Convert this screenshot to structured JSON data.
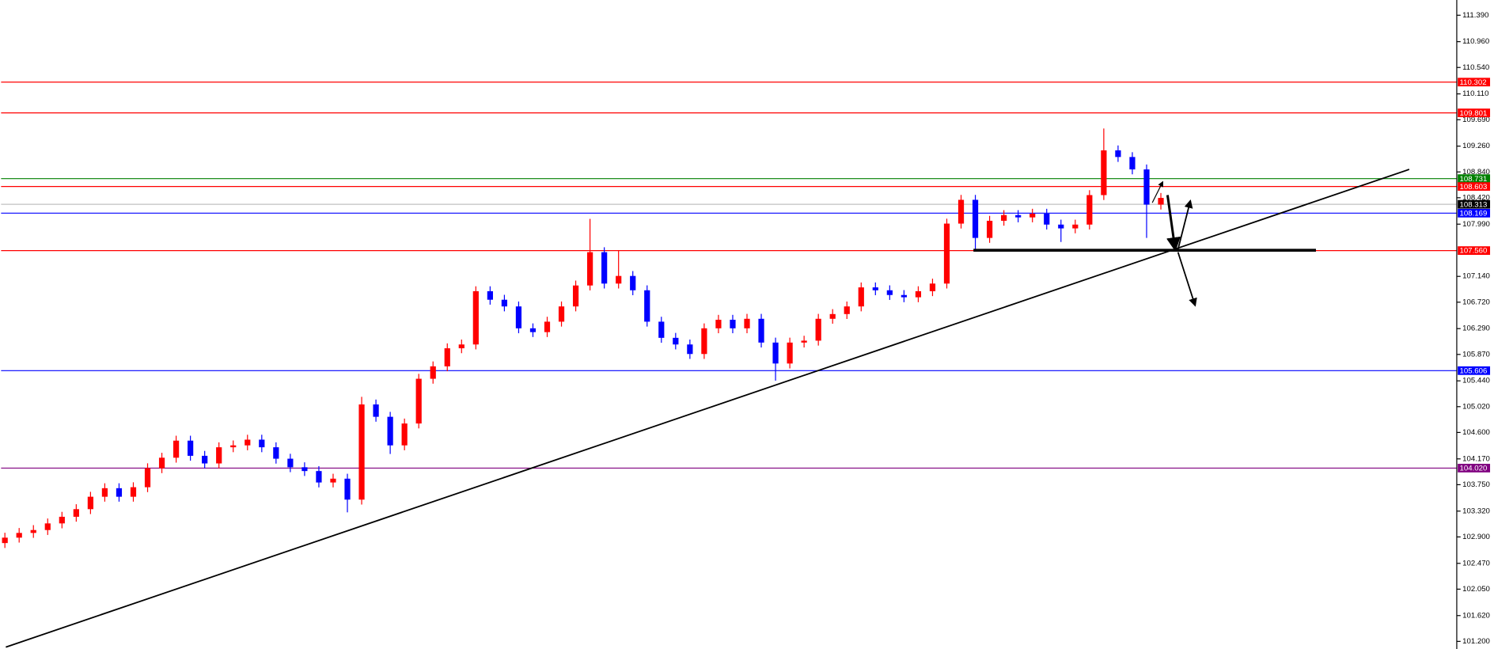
{
  "chart_data": {
    "type": "candlestick",
    "up_color": "#ff0000",
    "down_color": "#0000ff",
    "ylim": [
      101.076,
      111.638
    ],
    "yticks": [
      {
        "value": 111.39,
        "label": "111.390"
      },
      {
        "value": 110.96,
        "label": "110.960"
      },
      {
        "value": 110.54,
        "label": "110.540"
      },
      {
        "value": 110.11,
        "label": "110.110"
      },
      {
        "value": 109.69,
        "label": "109.690"
      },
      {
        "value": 109.26,
        "label": "109.260"
      },
      {
        "value": 108.84,
        "label": "108.840"
      },
      {
        "value": 108.42,
        "label": "108.420"
      },
      {
        "value": 107.99,
        "label": "107.990"
      },
      {
        "value": 107.14,
        "label": "107.140"
      },
      {
        "value": 106.72,
        "label": "106.720"
      },
      {
        "value": 106.29,
        "label": "106.290"
      },
      {
        "value": 105.87,
        "label": "105.870"
      },
      {
        "value": 105.44,
        "label": "105.440"
      },
      {
        "value": 105.02,
        "label": "105.020"
      },
      {
        "value": 104.6,
        "label": "104.600"
      },
      {
        "value": 104.17,
        "label": "104.170"
      },
      {
        "value": 103.75,
        "label": "103.750"
      },
      {
        "value": 103.32,
        "label": "103.320"
      },
      {
        "value": 102.9,
        "label": "102.900"
      },
      {
        "value": 102.47,
        "label": "102.470"
      },
      {
        "value": 102.05,
        "label": "102.050"
      },
      {
        "value": 101.62,
        "label": "101.620"
      },
      {
        "value": 101.2,
        "label": "101.200"
      }
    ],
    "levels": [
      {
        "value": 110.302,
        "color": "#ff0000"
      },
      {
        "value": 109.801,
        "color": "#ff0000"
      },
      {
        "value": 108.731,
        "color": "#008000"
      },
      {
        "value": 108.603,
        "color": "#ff0000"
      },
      {
        "value": 108.313,
        "color": "#000000"
      },
      {
        "value": 108.169,
        "color": "#0000ff"
      },
      {
        "value": 107.56,
        "label": "107.560",
        "color": "#ff0000"
      },
      {
        "value": 105.606,
        "color": "#0000ff"
      },
      {
        "value": 104.02,
        "label": "104.020",
        "color": "#800080"
      }
    ],
    "open": [
      102.8,
      102.888,
      102.965,
      103.012,
      103.12,
      103.228,
      103.352,
      103.554,
      103.693,
      103.554,
      103.709,
      104.018,
      104.189,
      104.467,
      104.22,
      104.096,
      104.359,
      104.39,
      104.483,
      104.359,
      104.173,
      104.034,
      103.972,
      103.786,
      103.848,
      103.507,
      105.056,
      104.855,
      104.39,
      104.746,
      105.474,
      105.676,
      105.97,
      106.032,
      106.899,
      106.76,
      106.651,
      106.295,
      106.233,
      106.403,
      106.651,
      106.992,
      107.534,
      107.023,
      107.147,
      106.914,
      106.403,
      106.14,
      106.032,
      105.877,
      106.295,
      106.434,
      106.295,
      106.45,
      106.063,
      105.722,
      106.063,
      106.094,
      106.45,
      106.527,
      106.651,
      106.961,
      106.914,
      106.837,
      106.8,
      106.899,
      107.023,
      107.999,
      108.386,
      107.766,
      108.045,
      108.138,
      108.1,
      108.16,
      107.983,
      107.921,
      107.983,
      108.463,
      109.191,
      109.083,
      108.881,
      108.308
    ],
    "close": [
      102.888,
      102.965,
      103.012,
      103.12,
      103.228,
      103.352,
      103.554,
      103.693,
      103.554,
      103.709,
      104.018,
      104.189,
      104.467,
      104.22,
      104.096,
      104.359,
      104.39,
      104.483,
      104.359,
      104.173,
      104.034,
      103.972,
      103.786,
      103.848,
      103.507,
      105.056,
      104.855,
      104.39,
      104.746,
      105.474,
      105.676,
      105.97,
      106.032,
      106.899,
      106.76,
      106.651,
      106.295,
      106.233,
      106.403,
      106.651,
      106.992,
      107.534,
      107.023,
      107.147,
      106.914,
      106.403,
      106.14,
      106.032,
      105.877,
      106.295,
      106.434,
      106.295,
      106.45,
      106.063,
      105.722,
      106.063,
      106.094,
      106.45,
      106.527,
      106.651,
      106.961,
      106.914,
      106.837,
      106.8,
      106.899,
      107.023,
      107.999,
      108.386,
      107.766,
      108.045,
      108.138,
      108.1,
      108.16,
      107.983,
      107.921,
      107.983,
      108.463,
      109.191,
      109.083,
      108.881,
      108.308,
      108.417
    ],
    "high": [
      102.968,
      103.045,
      103.092,
      103.2,
      103.308,
      103.432,
      103.634,
      103.773,
      103.773,
      103.789,
      104.098,
      104.269,
      104.547,
      104.547,
      104.3,
      104.439,
      104.47,
      104.563,
      104.563,
      104.439,
      104.253,
      104.114,
      104.052,
      103.928,
      103.928,
      105.18,
      105.136,
      104.935,
      104.826,
      105.554,
      105.756,
      106.05,
      106.112,
      106.979,
      106.979,
      106.84,
      106.731,
      106.375,
      106.483,
      106.731,
      107.072,
      108.076,
      107.614,
      107.56,
      107.227,
      106.994,
      106.483,
      106.22,
      106.112,
      106.375,
      106.514,
      106.514,
      106.53,
      106.53,
      106.143,
      106.143,
      106.174,
      106.53,
      106.607,
      106.731,
      107.041,
      107.041,
      106.994,
      106.917,
      106.979,
      107.103,
      108.079,
      108.466,
      108.466,
      108.125,
      108.218,
      108.218,
      108.24,
      108.24,
      108.063,
      108.063,
      108.543,
      109.547,
      109.271,
      109.161,
      108.961,
      108.497
    ],
    "low": [
      102.72,
      102.808,
      102.885,
      102.932,
      103.04,
      103.148,
      103.272,
      103.474,
      103.474,
      103.474,
      103.629,
      103.938,
      104.109,
      104.14,
      104.016,
      104.016,
      104.279,
      104.31,
      104.279,
      104.093,
      103.954,
      103.892,
      103.706,
      103.706,
      103.3,
      103.427,
      104.775,
      104.25,
      104.31,
      104.666,
      105.394,
      105.596,
      105.89,
      105.952,
      106.68,
      106.571,
      106.215,
      106.153,
      106.153,
      106.323,
      106.571,
      106.912,
      106.943,
      106.943,
      106.834,
      106.323,
      106.06,
      105.952,
      105.797,
      105.797,
      106.215,
      106.215,
      106.215,
      105.983,
      105.443,
      105.642,
      105.983,
      106.014,
      106.37,
      106.447,
      106.571,
      106.834,
      106.757,
      106.72,
      106.72,
      106.819,
      106.943,
      107.919,
      107.56,
      107.686,
      107.965,
      108.02,
      108.02,
      107.903,
      107.7,
      107.841,
      107.903,
      108.383,
      109.003,
      108.801,
      107.766,
      108.228
    ]
  }
}
